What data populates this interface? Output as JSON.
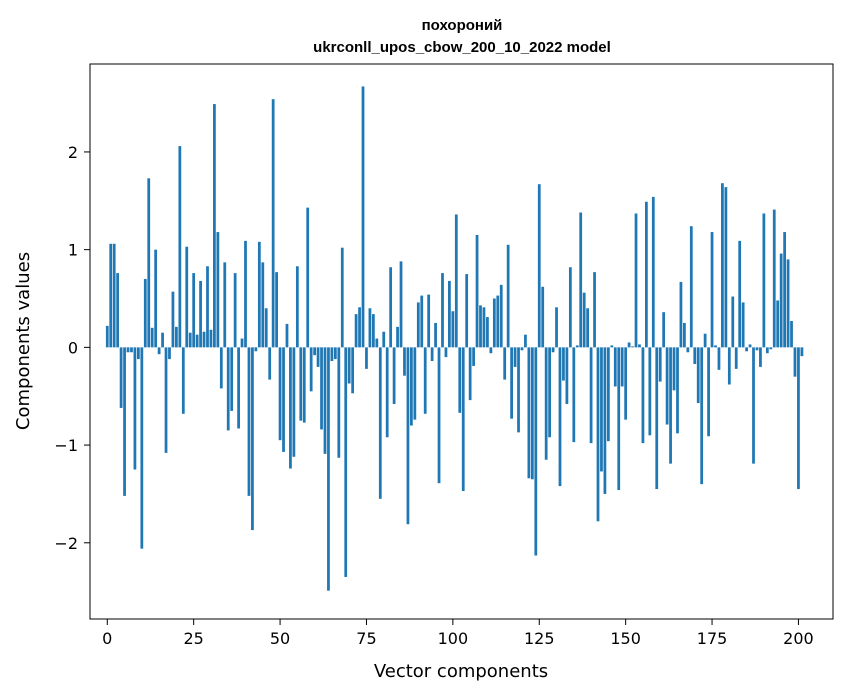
{
  "chart_data": {
    "type": "bar",
    "title": "похороний",
    "subtitle": "ukrconll_upos_cbow_200_10_2022 model",
    "xlabel": "Vector components",
    "ylabel": "Components values",
    "xlim": [
      -5,
      210
    ],
    "ylim": [
      -2.78,
      2.9
    ],
    "xticks": [
      0,
      25,
      50,
      75,
      100,
      125,
      150,
      175,
      200
    ],
    "yticks": [
      -2,
      -1,
      0,
      1,
      2
    ],
    "bar_color": "#1f77b4",
    "grid": false,
    "series": [
      {
        "values": [
          0.22,
          1.06,
          1.06,
          0.76,
          -0.62,
          -1.52,
          -0.05,
          -0.05,
          -1.25,
          -0.12,
          -2.06,
          0.7,
          1.73,
          0.2,
          1.0,
          -0.07,
          0.15,
          -1.08,
          -0.12,
          0.57,
          0.21,
          2.06,
          -0.68,
          1.03,
          0.15,
          0.76,
          0.13,
          0.68,
          0.16,
          0.83,
          0.18,
          2.49,
          1.18,
          -0.42,
          0.87,
          -0.85,
          -0.65,
          0.76,
          -0.83,
          0.09,
          1.09,
          -1.52,
          -1.87,
          -0.04,
          1.08,
          0.87,
          0.4,
          -0.33,
          2.54,
          0.77,
          -0.95,
          -1.07,
          0.24,
          -1.24,
          -1.12,
          0.83,
          -0.75,
          -0.77,
          1.43,
          -0.45,
          -0.08,
          -0.2,
          -0.84,
          -1.09,
          -2.49,
          -0.14,
          -0.12,
          -1.13,
          1.02,
          -2.35,
          -0.37,
          -0.47,
          0.34,
          0.41,
          2.67,
          -0.22,
          0.4,
          0.34,
          0.09,
          -1.55,
          0.16,
          -0.92,
          0.82,
          -0.58,
          0.21,
          0.88,
          -0.29,
          -1.81,
          -0.8,
          -0.74,
          0.46,
          0.53,
          -0.68,
          0.54,
          -0.14,
          0.25,
          -1.39,
          0.76,
          -0.1,
          0.68,
          0.37,
          1.36,
          -0.67,
          -1.47,
          0.75,
          -0.54,
          -0.19,
          1.15,
          0.43,
          0.41,
          0.31,
          -0.06,
          0.5,
          0.53,
          0.64,
          -0.33,
          1.05,
          -0.73,
          -0.2,
          -0.87,
          -0.03,
          0.13,
          -1.34,
          -1.35,
          -2.13,
          1.67,
          0.62,
          -1.15,
          -0.92,
          -0.05,
          0.41,
          -1.42,
          -0.34,
          -0.58,
          0.82,
          -0.97,
          0.02,
          1.38,
          0.56,
          0.4,
          -0.98,
          0.77,
          -1.78,
          -1.27,
          -1.5,
          -0.96,
          0.02,
          -0.4,
          -1.46,
          -0.4,
          -0.74,
          0.05,
          0.01,
          1.37,
          0.03,
          -0.98,
          1.49,
          -0.9,
          1.54,
          -1.45,
          -0.35,
          0.36,
          -0.79,
          -1.19,
          -0.44,
          -0.88,
          0.67,
          0.25,
          -0.05,
          1.24,
          -0.17,
          -0.57,
          -1.4,
          0.14,
          -0.91,
          1.18,
          0.02,
          -0.23,
          1.68,
          1.64,
          -0.38,
          0.52,
          -0.22,
          1.09,
          0.46,
          -0.04,
          0.03,
          -1.19,
          -0.03,
          -0.2,
          1.37,
          -0.06,
          -0.02,
          1.41,
          0.48,
          0.96,
          1.18,
          0.9,
          0.27,
          -0.3,
          -1.45,
          -0.09
        ]
      }
    ]
  }
}
